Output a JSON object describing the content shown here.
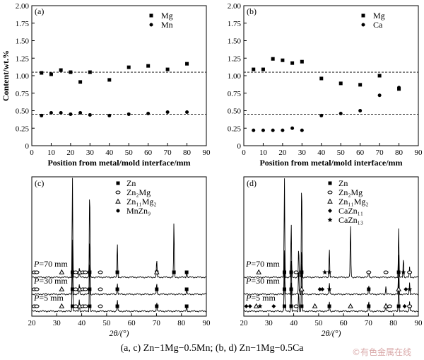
{
  "caption": "(a, c) Zn−1Mg−0.5Mn; (b, d) Zn−1Mg−0.5Ca",
  "watermark": "©有色金属在线",
  "chart_data": [
    {
      "id": "a",
      "panel_label": "(a)",
      "type": "scatter",
      "xlabel": "Position from metal/mold interface/mm",
      "ylabel": "Content/wt.%",
      "xlim": [
        0,
        90
      ],
      "ylim": [
        0,
        2.0
      ],
      "xticks": [
        0,
        10,
        20,
        30,
        40,
        50,
        60,
        70,
        80,
        90
      ],
      "yticks": [
        0,
        0.25,
        0.5,
        0.75,
        1.0,
        1.25,
        1.5,
        1.75,
        2.0
      ],
      "ytick_labels": [
        "0",
        "0.25",
        "0.50",
        "0.75",
        "1.00",
        "1.25",
        "1.50",
        "1.75",
        "2.00"
      ],
      "legend_position": "top-right",
      "reference_lines": [
        1.05,
        0.45
      ],
      "series": [
        {
          "name": "Mg",
          "marker": "square",
          "x": [
            5,
            10,
            15,
            20,
            25,
            30,
            40,
            50,
            60,
            70,
            80
          ],
          "y": [
            1.04,
            1.02,
            1.08,
            1.05,
            0.91,
            1.05,
            0.94,
            1.12,
            1.14,
            1.09,
            1.17
          ]
        },
        {
          "name": "Mn",
          "marker": "circle",
          "x": [
            5,
            10,
            15,
            20,
            25,
            30,
            40,
            50,
            60,
            70,
            80
          ],
          "y": [
            0.43,
            0.47,
            0.47,
            0.45,
            0.47,
            0.44,
            0.43,
            0.45,
            0.46,
            0.48,
            0.48
          ]
        }
      ]
    },
    {
      "id": "b",
      "panel_label": "(b)",
      "type": "scatter",
      "xlabel": "Position from metal/mold interface/mm",
      "ylabel": "",
      "xlim": [
        0,
        90
      ],
      "ylim": [
        0,
        2.0
      ],
      "xticks": [
        0,
        10,
        20,
        30,
        40,
        50,
        60,
        70,
        80,
        90
      ],
      "yticks": [
        0,
        0.25,
        0.5,
        0.75,
        1.0,
        1.25,
        1.5,
        1.75,
        2.0
      ],
      "ytick_labels": [
        "0",
        "0.25",
        "0.50",
        "0.75",
        "1.00",
        "1.25",
        "1.50",
        "1.75",
        "2.00"
      ],
      "legend_position": "top-right",
      "reference_lines": [
        1.05,
        0.45
      ],
      "series": [
        {
          "name": "Mg",
          "marker": "square",
          "x": [
            5,
            10,
            15,
            20,
            25,
            30,
            40,
            50,
            60,
            70,
            80
          ],
          "y": [
            1.09,
            1.09,
            1.24,
            1.22,
            1.18,
            1.2,
            0.96,
            0.89,
            0.87,
            1.0,
            0.81
          ]
        },
        {
          "name": "Ca",
          "marker": "circle",
          "x": [
            5,
            10,
            15,
            20,
            25,
            30,
            40,
            50,
            60,
            70,
            80
          ],
          "y": [
            0.22,
            0.22,
            0.22,
            0.22,
            0.25,
            0.22,
            0.43,
            0.46,
            0.5,
            0.72,
            0.83
          ]
        }
      ]
    },
    {
      "id": "c",
      "panel_label": "(c)",
      "type": "line",
      "xlabel": "2θ/(°)",
      "ylabel": "",
      "xlim": [
        20,
        90
      ],
      "xticks": [
        20,
        30,
        40,
        50,
        60,
        70,
        80,
        90
      ],
      "legend_position": "top-center",
      "legend": [
        {
          "marker": "square",
          "label": "Zn"
        },
        {
          "marker": "circle-open",
          "label": "Zn₂Mg"
        },
        {
          "marker": "triangle-open",
          "label": "Zn₁₁Mg₂"
        },
        {
          "marker": "circle",
          "label": "MnZn₉"
        }
      ],
      "patterns": [
        {
          "name": "P=70 mm",
          "label_prefix": "P",
          "label_suffix": "=70 mm",
          "peaks": [
            {
              "x": 36.3,
              "h": 1.0
            },
            {
              "x": 39.0,
              "h": 0.1
            },
            {
              "x": 43.2,
              "h": 0.92
            },
            {
              "x": 54.3,
              "h": 0.35
            },
            {
              "x": 70.1,
              "h": 0.18
            },
            {
              "x": 77.0,
              "h": 0.55
            },
            {
              "x": 82.1,
              "h": 0.07
            }
          ],
          "markers": [
            {
              "x": 21,
              "m": "circle-open"
            },
            {
              "x": 22,
              "m": "circle-open"
            },
            {
              "x": 32,
              "m": "triangle-open"
            },
            {
              "x": 36.3,
              "m": "square"
            },
            {
              "x": 37.6,
              "m": "circle-open"
            },
            {
              "x": 39.2,
              "m": "triangle-open"
            },
            {
              "x": 40.5,
              "m": "circle-open"
            },
            {
              "x": 41.5,
              "m": "circle-open"
            },
            {
              "x": 43.2,
              "m": "square"
            },
            {
              "x": 47.5,
              "m": "circle-open"
            },
            {
              "x": 54.3,
              "m": "square"
            },
            {
              "x": 70.1,
              "m": "square"
            },
            {
              "x": 70.1,
              "m": "triangle-open"
            },
            {
              "x": 77.0,
              "m": "square"
            },
            {
              "x": 82.1,
              "m": "square"
            }
          ]
        },
        {
          "name": "P=30 mm",
          "label_prefix": "P",
          "label_suffix": "=30 mm",
          "peaks": [
            {
              "x": 36.3,
              "h": 0.55
            },
            {
              "x": 39.0,
              "h": 0.1
            },
            {
              "x": 43.2,
              "h": 0.6
            },
            {
              "x": 54.3,
              "h": 0.12
            },
            {
              "x": 70.1,
              "h": 0.12
            },
            {
              "x": 82.1,
              "h": 0.05
            }
          ],
          "markers": [
            {
              "x": 21,
              "m": "circle-open"
            },
            {
              "x": 22,
              "m": "circle-open"
            },
            {
              "x": 32,
              "m": "triangle-open"
            },
            {
              "x": 36.3,
              "m": "square"
            },
            {
              "x": 37.6,
              "m": "circle-open"
            },
            {
              "x": 39.2,
              "m": "triangle-open"
            },
            {
              "x": 40.5,
              "m": "circle-open"
            },
            {
              "x": 41.5,
              "m": "circle-open"
            },
            {
              "x": 43.2,
              "m": "square"
            },
            {
              "x": 47.5,
              "m": "circle-open"
            },
            {
              "x": 54.3,
              "m": "square"
            },
            {
              "x": 70.1,
              "m": "square"
            },
            {
              "x": 82.1,
              "m": "square"
            }
          ]
        },
        {
          "name": "P=5 mm",
          "label_prefix": "P",
          "label_suffix": "=5 mm",
          "peaks": [
            {
              "x": 36.3,
              "h": 0.62
            },
            {
              "x": 39.0,
              "h": 0.12
            },
            {
              "x": 43.2,
              "h": 0.55
            },
            {
              "x": 54.3,
              "h": 0.12
            },
            {
              "x": 70.1,
              "h": 0.1
            },
            {
              "x": 82.1,
              "h": 0.05
            }
          ],
          "markers": [
            {
              "x": 21,
              "m": "circle-open"
            },
            {
              "x": 22,
              "m": "circle-open"
            },
            {
              "x": 32,
              "m": "triangle-open"
            },
            {
              "x": 36.3,
              "m": "square"
            },
            {
              "x": 37.6,
              "m": "circle-open"
            },
            {
              "x": 39.2,
              "m": "triangle-open"
            },
            {
              "x": 40.5,
              "m": "circle-open"
            },
            {
              "x": 41.5,
              "m": "circle-open"
            },
            {
              "x": 43.2,
              "m": "square"
            },
            {
              "x": 47.5,
              "m": "circle-open"
            },
            {
              "x": 54.3,
              "m": "square"
            },
            {
              "x": 70.1,
              "m": "square"
            },
            {
              "x": 82.1,
              "m": "square"
            }
          ]
        }
      ]
    },
    {
      "id": "d",
      "panel_label": "(d)",
      "type": "line",
      "xlabel": "2θ/(°)",
      "ylabel": "",
      "xlim": [
        20,
        90
      ],
      "xticks": [
        20,
        30,
        40,
        50,
        60,
        70,
        80,
        90
      ],
      "legend_position": "top-center",
      "legend": [
        {
          "marker": "square",
          "label": "Zn"
        },
        {
          "marker": "circle-open",
          "label": "Zn₂Mg"
        },
        {
          "marker": "triangle-open",
          "label": "Zn₁₁Mg₂"
        },
        {
          "marker": "diamond",
          "label": "CaZn₁₁"
        },
        {
          "marker": "star",
          "label": "CaZn₁₃"
        }
      ],
      "patterns": [
        {
          "name": "P=70 mm",
          "label_prefix": "P",
          "label_suffix": "=70 mm",
          "peaks": [
            {
              "x": 36.3,
              "h": 1.0
            },
            {
              "x": 39.0,
              "h": 0.55
            },
            {
              "x": 42.0,
              "h": 0.3
            },
            {
              "x": 43.2,
              "h": 1.0
            },
            {
              "x": 54.3,
              "h": 0.3
            },
            {
              "x": 62.8,
              "h": 0.55
            },
            {
              "x": 70.1,
              "h": 0.08
            },
            {
              "x": 82.1,
              "h": 0.5
            },
            {
              "x": 84.0,
              "h": 0.2
            },
            {
              "x": 86.5,
              "h": 0.1
            }
          ],
          "markers": [
            {
              "x": 26,
              "m": "triangle-open"
            },
            {
              "x": 36.3,
              "m": "square"
            },
            {
              "x": 39.0,
              "m": "square"
            },
            {
              "x": 41.0,
              "m": "circle-open"
            },
            {
              "x": 43.2,
              "m": "square"
            },
            {
              "x": 52.5,
              "m": "star"
            },
            {
              "x": 54.3,
              "m": "star"
            },
            {
              "x": 70.1,
              "m": "circle-open"
            },
            {
              "x": 77.0,
              "m": "circle-open"
            },
            {
              "x": 82.1,
              "m": "square"
            },
            {
              "x": 84.0,
              "m": "star"
            },
            {
              "x": 86.5,
              "m": "circle-open"
            }
          ]
        },
        {
          "name": "P=30 mm",
          "label_prefix": "P",
          "label_suffix": "=30 mm",
          "peaks": [
            {
              "x": 36.3,
              "h": 0.45
            },
            {
              "x": 39.0,
              "h": 0.35
            },
            {
              "x": 42.0,
              "h": 0.25
            },
            {
              "x": 43.2,
              "h": 0.5
            },
            {
              "x": 54.3,
              "h": 0.12
            },
            {
              "x": 70.1,
              "h": 0.1
            },
            {
              "x": 77.0,
              "h": 0.08
            },
            {
              "x": 82.1,
              "h": 0.4
            },
            {
              "x": 86.5,
              "h": 0.12
            }
          ],
          "markers": [
            {
              "x": 36.3,
              "m": "square"
            },
            {
              "x": 39.0,
              "m": "square"
            },
            {
              "x": 43.2,
              "m": "triangle-open"
            },
            {
              "x": 50.5,
              "m": "diamond"
            },
            {
              "x": 51.5,
              "m": "diamond"
            },
            {
              "x": 54.3,
              "m": "star"
            },
            {
              "x": 70.1,
              "m": "square"
            },
            {
              "x": 82.1,
              "m": "triangle-open"
            },
            {
              "x": 85.0,
              "m": "diamond"
            },
            {
              "x": 86.5,
              "m": "star"
            }
          ]
        },
        {
          "name": "P=5 mm",
          "label_prefix": "P",
          "label_suffix": "=5 mm",
          "peaks": [
            {
              "x": 36.3,
              "h": 0.5
            },
            {
              "x": 39.0,
              "h": 0.3
            },
            {
              "x": 42.0,
              "h": 0.2
            },
            {
              "x": 43.2,
              "h": 0.55
            },
            {
              "x": 54.3,
              "h": 0.1
            },
            {
              "x": 70.1,
              "h": 0.1
            },
            {
              "x": 77.0,
              "h": 0.08
            },
            {
              "x": 82.1,
              "h": 0.35
            },
            {
              "x": 86.5,
              "h": 0.1
            }
          ],
          "markers": [
            {
              "x": 21,
              "m": "diamond"
            },
            {
              "x": 22.5,
              "m": "diamond"
            },
            {
              "x": 25,
              "m": "triangle-open"
            },
            {
              "x": 26.5,
              "m": "star"
            },
            {
              "x": 32,
              "m": "diamond"
            },
            {
              "x": 36.3,
              "m": "square"
            },
            {
              "x": 39.0,
              "m": "square"
            },
            {
              "x": 41.0,
              "m": "circle-open"
            },
            {
              "x": 43.2,
              "m": "square"
            },
            {
              "x": 48.5,
              "m": "triangle-open"
            },
            {
              "x": 54.3,
              "m": "square"
            },
            {
              "x": 62.8,
              "m": "triangle-open"
            },
            {
              "x": 70.1,
              "m": "square"
            },
            {
              "x": 77.0,
              "m": "triangle-open"
            },
            {
              "x": 78.5,
              "m": "circle-open"
            },
            {
              "x": 82.1,
              "m": "square"
            },
            {
              "x": 84.5,
              "m": "diamond"
            },
            {
              "x": 86.5,
              "m": "circle-open"
            }
          ]
        }
      ]
    }
  ]
}
